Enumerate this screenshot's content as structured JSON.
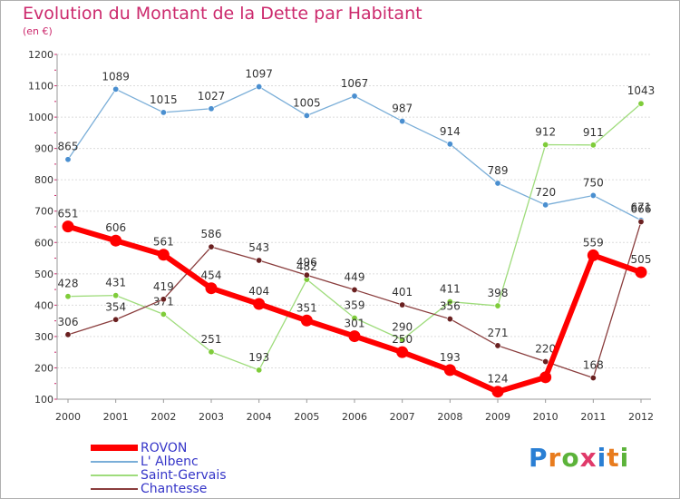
{
  "title": "Evolution du Montant de la Dette par Habitant",
  "subtitle": "(en €)",
  "logo": {
    "text": "Proxiti",
    "colors": [
      "#2a7fd4",
      "#e87c1e",
      "#5cb33a",
      "#e03a6a",
      "#2a7fd4",
      "#e87c1e",
      "#5cb33a"
    ]
  },
  "chart_data": {
    "type": "line",
    "title": "Evolution du Montant de la Dette par Habitant",
    "subtitle": "(en €)",
    "x": [
      "2000",
      "2001",
      "2002",
      "2003",
      "2004",
      "2005",
      "2006",
      "2007",
      "2008",
      "2009",
      "2010",
      "2011",
      "2012"
    ],
    "y_ticks": [
      100,
      200,
      300,
      400,
      500,
      600,
      700,
      800,
      900,
      1000,
      1100,
      1200
    ],
    "ylim": [
      100,
      1200
    ],
    "grid": "horizontal",
    "legend_position": "bottom-left",
    "series": [
      {
        "name": "ROVON",
        "color": "#ff0000",
        "point_color": "#ff0000",
        "width": 6,
        "values": [
          651,
          606,
          561,
          454,
          404,
          351,
          301,
          250,
          193,
          124,
          170,
          559,
          505
        ],
        "labels": [
          "651",
          "606",
          "561",
          "454",
          "404",
          "351",
          "301",
          "250",
          "193",
          "124",
          "",
          "559",
          "505"
        ]
      },
      {
        "name": "L' Albenc",
        "color": "#7aaed8",
        "point_color": "#4a8fd0",
        "width": 1.3,
        "values": [
          865,
          1089,
          1015,
          1027,
          1097,
          1005,
          1067,
          987,
          914,
          789,
          720,
          750,
          671
        ],
        "labels": [
          "865",
          "1089",
          "1015",
          "1027",
          "1097",
          "1005",
          "1067",
          "987",
          "914",
          "789",
          "720",
          "750",
          "671"
        ]
      },
      {
        "name": "Saint-Gervais",
        "color": "#9fdc7c",
        "point_color": "#7fcc3a",
        "width": 1.3,
        "values": [
          428,
          431,
          371,
          251,
          193,
          482,
          359,
          290,
          411,
          398,
          912,
          911,
          1043
        ],
        "labels": [
          "428",
          "431",
          "371",
          "251",
          "193",
          "482",
          "359",
          "290",
          "411",
          "398",
          "912",
          "911",
          "1043"
        ]
      },
      {
        "name": "Chantesse",
        "color": "#8a3d3d",
        "point_color": "#6a2020",
        "width": 1.3,
        "values": [
          306,
          354,
          419,
          586,
          543,
          496,
          449,
          401,
          356,
          271,
          220,
          168,
          666
        ],
        "labels": [
          "306",
          "354",
          "419",
          "586",
          "543",
          "496",
          "449",
          "401",
          "356",
          "271",
          "220",
          "168",
          "666"
        ]
      }
    ]
  }
}
